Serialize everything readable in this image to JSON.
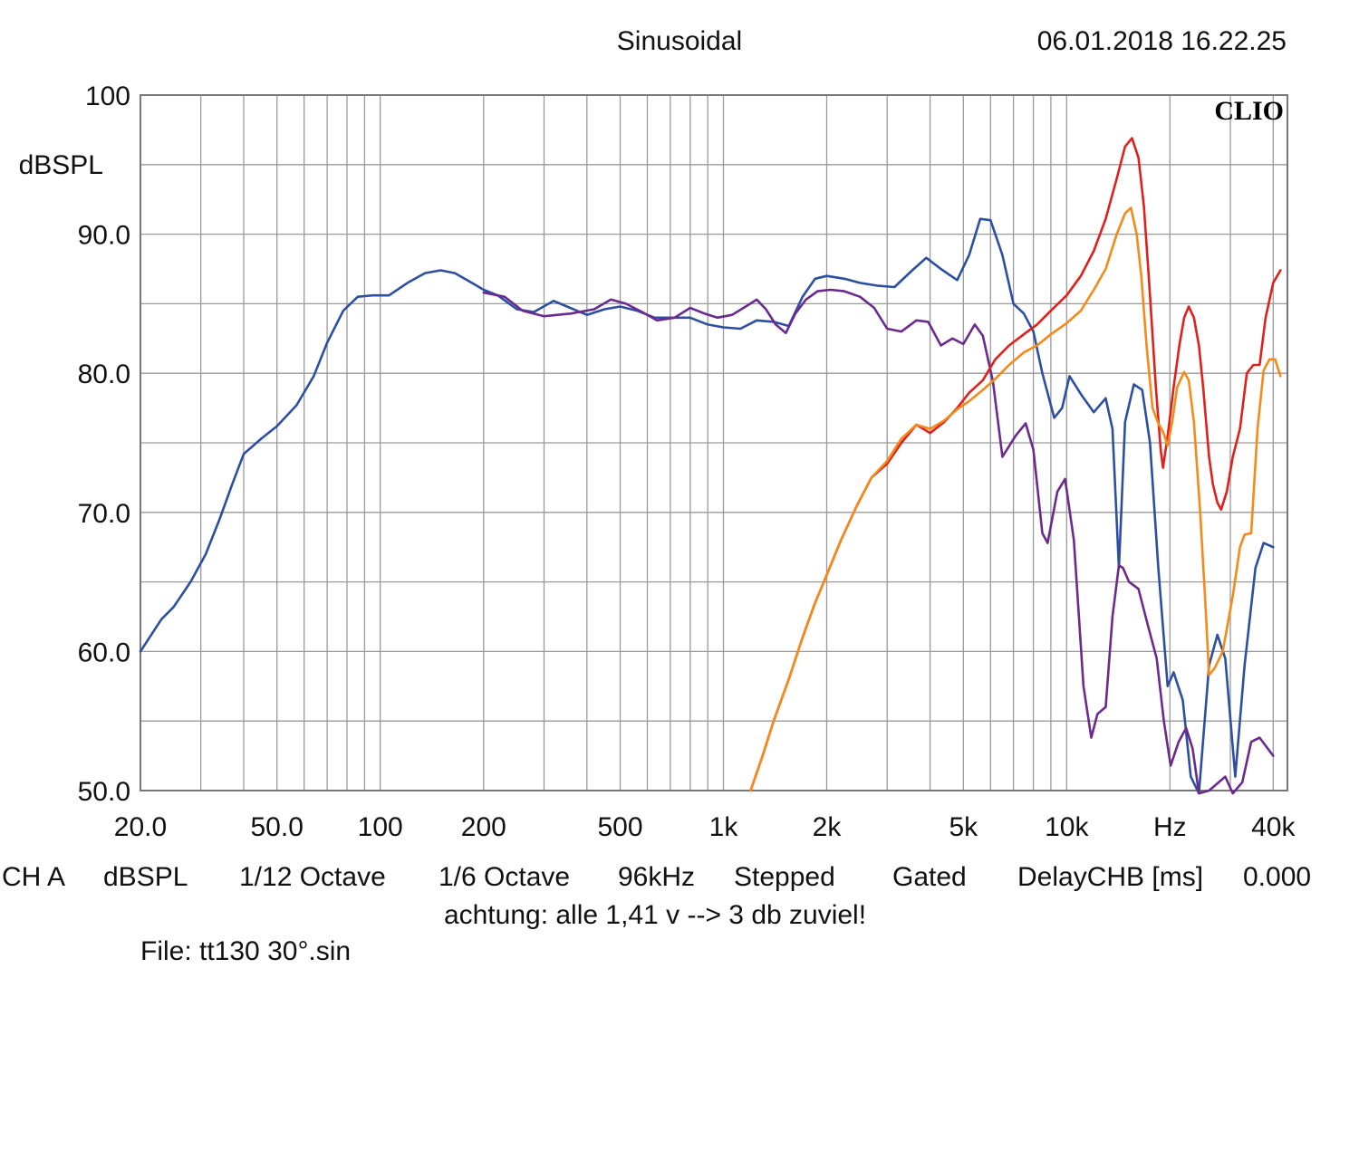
{
  "header": {
    "mode": "Sinusoidal",
    "datetime": "06.01.2018 16.22.25",
    "brand": "CLIO"
  },
  "chart_data": {
    "type": "line",
    "x_scale": "log",
    "y_unit": "dBSPL",
    "x_unit": "Hz",
    "xlim": [
      20,
      44000
    ],
    "ylim": [
      50,
      100
    ],
    "grid": true,
    "y_ticks": [
      "100",
      "90.0",
      "80.0",
      "70.0",
      "60.0",
      "50.0"
    ],
    "y_tick_values": [
      100,
      90,
      80,
      70,
      60,
      50
    ],
    "x_ticks": [
      "20.0",
      "50.0",
      "100",
      "200",
      "500",
      "1k",
      "2k",
      "5k",
      "10k",
      "Hz",
      "40k"
    ],
    "x_tick_values": [
      20,
      50,
      100,
      200,
      500,
      1000,
      2000,
      5000,
      10000,
      20000,
      40000
    ],
    "series": [
      {
        "color": "#2d4fa2",
        "points": [
          [
            20,
            60
          ],
          [
            21,
            60.8
          ],
          [
            23,
            62.3
          ],
          [
            25,
            63.2
          ],
          [
            28,
            65
          ],
          [
            31,
            67
          ],
          [
            34,
            69.5
          ],
          [
            37,
            72
          ],
          [
            40,
            74.2
          ],
          [
            45,
            75.3
          ],
          [
            50,
            76.2
          ],
          [
            57,
            77.7
          ],
          [
            64,
            79.8
          ],
          [
            70,
            82.2
          ],
          [
            78,
            84.5
          ],
          [
            86,
            85.5
          ],
          [
            95,
            85.6
          ],
          [
            106,
            85.6
          ],
          [
            120,
            86.5
          ],
          [
            135,
            87.2
          ],
          [
            150,
            87.4
          ],
          [
            165,
            87.2
          ],
          [
            185,
            86.5
          ],
          [
            200,
            86
          ],
          [
            220,
            85.6
          ],
          [
            250,
            84.6
          ],
          [
            280,
            84.4
          ],
          [
            320,
            85.2
          ],
          [
            350,
            84.8
          ],
          [
            400,
            84.2
          ],
          [
            450,
            84.6
          ],
          [
            500,
            84.8
          ],
          [
            560,
            84.5
          ],
          [
            630,
            84
          ],
          [
            710,
            84
          ],
          [
            800,
            84
          ],
          [
            900,
            83.5
          ],
          [
            1000,
            83.3
          ],
          [
            1120,
            83.2
          ],
          [
            1250,
            83.8
          ],
          [
            1400,
            83.7
          ],
          [
            1550,
            83.4
          ],
          [
            1700,
            85.5
          ],
          [
            1850,
            86.8
          ],
          [
            2000,
            87
          ],
          [
            2250,
            86.8
          ],
          [
            2500,
            86.5
          ],
          [
            2800,
            86.3
          ],
          [
            3150,
            86.2
          ],
          [
            3550,
            87.4
          ],
          [
            3900,
            88.3
          ],
          [
            4300,
            87.5
          ],
          [
            4800,
            86.7
          ],
          [
            5200,
            88.5
          ],
          [
            5600,
            91.1
          ],
          [
            6000,
            91
          ],
          [
            6500,
            88.5
          ],
          [
            7000,
            85
          ],
          [
            7500,
            84.3
          ],
          [
            8000,
            83
          ],
          [
            8500,
            80
          ],
          [
            9200,
            76.8
          ],
          [
            9700,
            77.5
          ],
          [
            10200,
            79.8
          ],
          [
            11000,
            78.5
          ],
          [
            12000,
            77.2
          ],
          [
            13000,
            78.2
          ],
          [
            13600,
            76
          ],
          [
            14200,
            66
          ],
          [
            14800,
            76.5
          ],
          [
            15700,
            79.2
          ],
          [
            16600,
            78.8
          ],
          [
            17500,
            75
          ],
          [
            18500,
            66
          ],
          [
            19700,
            57.5
          ],
          [
            20500,
            58.5
          ],
          [
            21800,
            56.5
          ],
          [
            23000,
            51
          ],
          [
            24300,
            49.8
          ],
          [
            26000,
            59
          ],
          [
            27500,
            61.2
          ],
          [
            29000,
            59.5
          ],
          [
            31000,
            51
          ],
          [
            33000,
            59
          ],
          [
            35500,
            66
          ],
          [
            37500,
            67.8
          ],
          [
            40000,
            67.5
          ]
        ]
      },
      {
        "color": "#6b2a8e",
        "points": [
          [
            200,
            85.8
          ],
          [
            230,
            85.5
          ],
          [
            260,
            84.5
          ],
          [
            300,
            84.1
          ],
          [
            360,
            84.3
          ],
          [
            420,
            84.6
          ],
          [
            470,
            85.3
          ],
          [
            520,
            85.0
          ],
          [
            580,
            84.4
          ],
          [
            640,
            83.8
          ],
          [
            720,
            84.0
          ],
          [
            800,
            84.7
          ],
          [
            880,
            84.3
          ],
          [
            960,
            84.0
          ],
          [
            1060,
            84.2
          ],
          [
            1180,
            84.9
          ],
          [
            1250,
            85.3
          ],
          [
            1330,
            84.6
          ],
          [
            1420,
            83.5
          ],
          [
            1520,
            82.9
          ],
          [
            1620,
            84.3
          ],
          [
            1740,
            85.3
          ],
          [
            1880,
            85.9
          ],
          [
            2050,
            86.0
          ],
          [
            2250,
            85.9
          ],
          [
            2500,
            85.5
          ],
          [
            2750,
            84.7
          ],
          [
            3000,
            83.2
          ],
          [
            3300,
            83.0
          ],
          [
            3650,
            83.8
          ],
          [
            3950,
            83.7
          ],
          [
            4300,
            82.0
          ],
          [
            4650,
            82.5
          ],
          [
            5000,
            82.1
          ],
          [
            5400,
            83.5
          ],
          [
            5700,
            82.7
          ],
          [
            6100,
            79.4
          ],
          [
            6500,
            74.0
          ],
          [
            7100,
            75.5
          ],
          [
            7600,
            76.4
          ],
          [
            8000,
            74.5
          ],
          [
            8500,
            68.5
          ],
          [
            8800,
            67.8
          ],
          [
            9400,
            71.5
          ],
          [
            9900,
            72.4
          ],
          [
            10500,
            68.0
          ],
          [
            11200,
            57.5
          ],
          [
            11800,
            53.8
          ],
          [
            12300,
            55.5
          ],
          [
            13000,
            56.0
          ],
          [
            13600,
            62.5
          ],
          [
            14200,
            66.2
          ],
          [
            14600,
            66.0
          ],
          [
            15200,
            65.0
          ],
          [
            16200,
            64.5
          ],
          [
            17200,
            62.0
          ],
          [
            18300,
            59.5
          ],
          [
            19200,
            55.0
          ],
          [
            20100,
            51.8
          ],
          [
            21200,
            53.5
          ],
          [
            22300,
            54.5
          ],
          [
            23300,
            53.0
          ],
          [
            24300,
            49.8
          ],
          [
            26000,
            50.0
          ],
          [
            29000,
            51.0
          ],
          [
            30500,
            49.8
          ],
          [
            32500,
            50.6
          ],
          [
            34500,
            53.5
          ],
          [
            36500,
            53.8
          ],
          [
            40000,
            52.5
          ]
        ]
      },
      {
        "color": "#e0201a",
        "points": [
          [
            1200,
            50
          ],
          [
            1300,
            52.5
          ],
          [
            1400,
            55
          ],
          [
            1550,
            58
          ],
          [
            1700,
            61
          ],
          [
            1850,
            63.5
          ],
          [
            2000,
            65.5
          ],
          [
            2200,
            68
          ],
          [
            2450,
            70.5
          ],
          [
            2700,
            72.5
          ],
          [
            3000,
            73.5
          ],
          [
            3300,
            75
          ],
          [
            3650,
            76.3
          ],
          [
            4000,
            75.7
          ],
          [
            4400,
            76.5
          ],
          [
            4800,
            77.5
          ],
          [
            5200,
            78.6
          ],
          [
            5700,
            79.5
          ],
          [
            6200,
            81
          ],
          [
            6800,
            82
          ],
          [
            7500,
            82.8
          ],
          [
            8200,
            83.5
          ],
          [
            9000,
            84.5
          ],
          [
            10000,
            85.6
          ],
          [
            11000,
            87
          ],
          [
            12000,
            88.8
          ],
          [
            13000,
            91.1
          ],
          [
            14000,
            94
          ],
          [
            14800,
            96.3
          ],
          [
            15500,
            96.9
          ],
          [
            16200,
            95.5
          ],
          [
            16800,
            92
          ],
          [
            17400,
            86.5
          ],
          [
            18200,
            79
          ],
          [
            18800,
            74.5
          ],
          [
            19100,
            73.2
          ],
          [
            19700,
            75.5
          ],
          [
            20500,
            79
          ],
          [
            21300,
            82
          ],
          [
            22000,
            84
          ],
          [
            22700,
            84.8
          ],
          [
            23500,
            84
          ],
          [
            24300,
            82
          ],
          [
            25000,
            79
          ],
          [
            26000,
            74
          ],
          [
            26700,
            72
          ],
          [
            27500,
            70.7
          ],
          [
            28200,
            70.2
          ],
          [
            29300,
            71.5
          ],
          [
            30500,
            74
          ],
          [
            32000,
            76
          ],
          [
            33500,
            80
          ],
          [
            35000,
            80.6
          ],
          [
            36500,
            80.6
          ],
          [
            38000,
            84
          ],
          [
            40000,
            86.5
          ],
          [
            42000,
            87.4
          ]
        ]
      },
      {
        "color": "#f58a1a",
        "points": [
          [
            1200,
            50
          ],
          [
            1300,
            52.5
          ],
          [
            1400,
            55
          ],
          [
            1550,
            58
          ],
          [
            1700,
            61
          ],
          [
            1850,
            63.5
          ],
          [
            2000,
            65.5
          ],
          [
            2200,
            68
          ],
          [
            2450,
            70.5
          ],
          [
            2700,
            72.5
          ],
          [
            3000,
            73.7
          ],
          [
            3300,
            75.3
          ],
          [
            3650,
            76.3
          ],
          [
            4000,
            76
          ],
          [
            4400,
            76.6
          ],
          [
            4800,
            77.4
          ],
          [
            5200,
            78
          ],
          [
            5700,
            78.8
          ],
          [
            6200,
            79.6
          ],
          [
            6800,
            80.6
          ],
          [
            7500,
            81.5
          ],
          [
            8200,
            82
          ],
          [
            9000,
            82.8
          ],
          [
            10000,
            83.6
          ],
          [
            11000,
            84.5
          ],
          [
            12000,
            86
          ],
          [
            13000,
            87.5
          ],
          [
            14000,
            90
          ],
          [
            14800,
            91.5
          ],
          [
            15400,
            91.9
          ],
          [
            16000,
            90
          ],
          [
            16500,
            87
          ],
          [
            17100,
            82
          ],
          [
            17800,
            77.5
          ],
          [
            18500,
            76.4
          ],
          [
            19100,
            75.8
          ],
          [
            19700,
            74.8
          ],
          [
            20300,
            76.5
          ],
          [
            21000,
            79
          ],
          [
            22000,
            80.1
          ],
          [
            22700,
            79.5
          ],
          [
            23500,
            76.5
          ],
          [
            24500,
            70
          ],
          [
            25300,
            64
          ],
          [
            26000,
            58.3
          ],
          [
            27000,
            58.8
          ],
          [
            28500,
            60
          ],
          [
            30500,
            64
          ],
          [
            32000,
            67.5
          ],
          [
            33000,
            68.4
          ],
          [
            34500,
            68.5
          ],
          [
            36000,
            76
          ],
          [
            37500,
            80.2
          ],
          [
            39000,
            81
          ],
          [
            40500,
            81
          ],
          [
            42000,
            79.8
          ]
        ]
      }
    ]
  },
  "footer": {
    "channel": "CH A",
    "unit": "dBSPL",
    "smoothing": "1/12 Octave",
    "resolution": "1/6 Octave",
    "sample_rate": "96kHz",
    "stepping": "Stepped",
    "gating": "Gated",
    "delay_label": "DelayCHB [ms]",
    "delay_value": "0.000",
    "note": "achtung: alle 1,41 v --> 3 db zuviel!",
    "file": "File: tt130 30°.sin"
  }
}
